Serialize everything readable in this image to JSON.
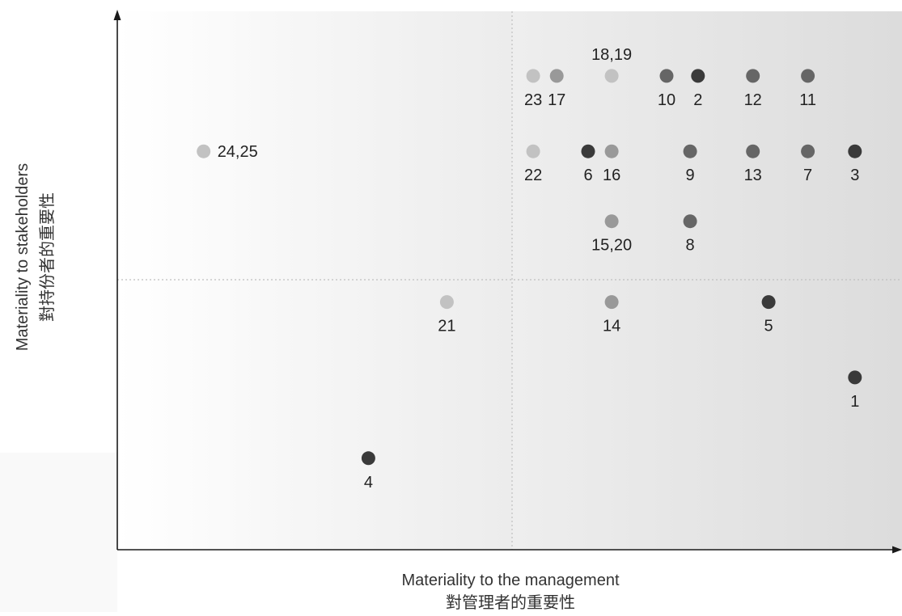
{
  "chart_data": {
    "type": "scatter",
    "xlabel": "Materiality to the management",
    "xlabel_zh": "對管理者的重要性",
    "ylabel": "Materiality to stakeholders",
    "ylabel_zh": "對持份者的重要性",
    "xlim": [
      0,
      100
    ],
    "ylim": [
      0,
      100
    ],
    "x_divider": 50,
    "y_divider": 50,
    "grid": false,
    "colors": {
      "dark": "#3a3a3a",
      "medium": "#666666",
      "mid_light": "#999999",
      "light": "#c2c2c2",
      "axis": "#1a1a1a",
      "divider": "#bfbfbf",
      "label": "#222222"
    },
    "points": [
      {
        "label": "24,25",
        "x": 11,
        "y": 74,
        "shade": "light",
        "label_pos": "right"
      },
      {
        "label": "23",
        "x": 53,
        "y": 88,
        "shade": "light",
        "label_pos": "below"
      },
      {
        "label": "17",
        "x": 56,
        "y": 88,
        "shade": "mid_light",
        "label_pos": "below"
      },
      {
        "label": "18,19",
        "x": 63,
        "y": 88,
        "shade": "light",
        "label_pos": "above"
      },
      {
        "label": "10",
        "x": 70,
        "y": 88,
        "shade": "medium",
        "label_pos": "below"
      },
      {
        "label": "2",
        "x": 74,
        "y": 88,
        "shade": "dark",
        "label_pos": "below"
      },
      {
        "label": "12",
        "x": 81,
        "y": 88,
        "shade": "medium",
        "label_pos": "below"
      },
      {
        "label": "11",
        "x": 88,
        "y": 88,
        "shade": "medium",
        "label_pos": "below"
      },
      {
        "label": "22",
        "x": 53,
        "y": 74,
        "shade": "light",
        "label_pos": "below"
      },
      {
        "label": "6",
        "x": 60,
        "y": 74,
        "shade": "dark",
        "label_pos": "below"
      },
      {
        "label": "16",
        "x": 63,
        "y": 74,
        "shade": "mid_light",
        "label_pos": "below"
      },
      {
        "label": "9",
        "x": 73,
        "y": 74,
        "shade": "medium",
        "label_pos": "below"
      },
      {
        "label": "13",
        "x": 81,
        "y": 74,
        "shade": "medium",
        "label_pos": "below"
      },
      {
        "label": "7",
        "x": 88,
        "y": 74,
        "shade": "medium",
        "label_pos": "below"
      },
      {
        "label": "3",
        "x": 94,
        "y": 74,
        "shade": "dark",
        "label_pos": "below"
      },
      {
        "label": "15,20",
        "x": 63,
        "y": 61,
        "shade": "mid_light",
        "label_pos": "below"
      },
      {
        "label": "8",
        "x": 73,
        "y": 61,
        "shade": "medium",
        "label_pos": "below"
      },
      {
        "label": "21",
        "x": 42,
        "y": 46,
        "shade": "light",
        "label_pos": "below"
      },
      {
        "label": "14",
        "x": 63,
        "y": 46,
        "shade": "mid_light",
        "label_pos": "below"
      },
      {
        "label": "5",
        "x": 83,
        "y": 46,
        "shade": "dark",
        "label_pos": "below"
      },
      {
        "label": "1",
        "x": 94,
        "y": 32,
        "shade": "dark",
        "label_pos": "below"
      },
      {
        "label": "4",
        "x": 32,
        "y": 17,
        "shade": "dark",
        "label_pos": "below"
      }
    ]
  }
}
